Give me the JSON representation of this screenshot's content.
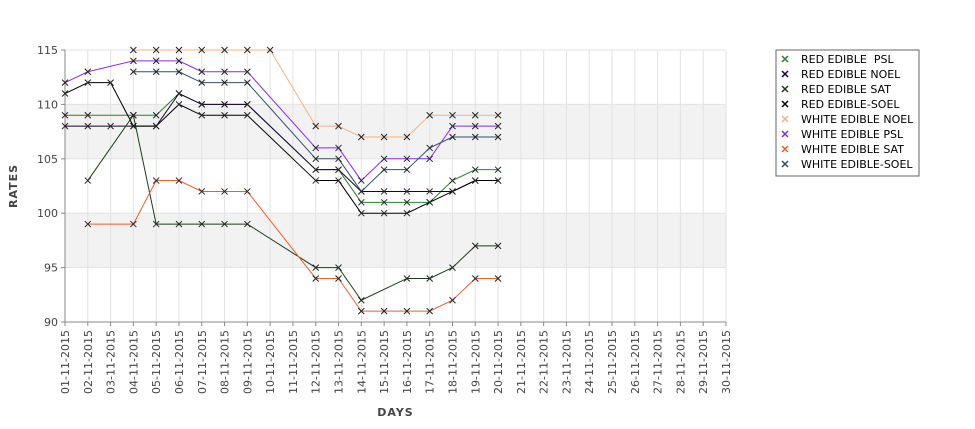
{
  "chart_data": {
    "type": "line",
    "xlabel": "DAYS",
    "ylabel": "RATES",
    "ylim": [
      90,
      115
    ],
    "yticks": [
      90,
      95,
      100,
      105,
      110,
      115
    ],
    "grid": true,
    "legend_position": "right",
    "categories": [
      "01-11-2015",
      "02-11-2015",
      "03-11-2015",
      "04-11-2015",
      "05-11-2015",
      "06-11-2015",
      "07-11-2015",
      "08-11-2015",
      "09-11-2015",
      "10-11-2015",
      "11-11-2015",
      "12-11-2015",
      "13-11-2015",
      "14-11-2015",
      "15-11-2015",
      "16-11-2015",
      "17-11-2015",
      "18-11-2015",
      "19-11-2015",
      "20-11-2015",
      "21-11-2015",
      "22-11-2015",
      "23-11-2015",
      "24-11-2015",
      "25-11-2015",
      "26-11-2015",
      "27-11-2015",
      "28-11-2015",
      "29-11-2015",
      "30-11-2015"
    ],
    "series": [
      {
        "name": "RED EDIBLE  PSL",
        "color": "#2e7d32",
        "values": [
          109,
          109,
          null,
          109,
          109,
          111,
          110,
          110,
          110,
          null,
          null,
          104,
          104,
          101,
          101,
          101,
          101,
          103,
          104,
          104,
          null,
          null,
          null,
          null,
          null,
          null,
          null,
          null,
          null,
          null
        ]
      },
      {
        "name": "RED EDIBLE NOEL",
        "color": "#1a0033",
        "values": [
          108,
          108,
          108,
          108,
          108,
          111,
          110,
          110,
          110,
          null,
          null,
          104,
          104,
          102,
          102,
          102,
          102,
          102,
          103,
          103,
          null,
          null,
          null,
          null,
          null,
          null,
          null,
          null,
          null,
          null
        ]
      },
      {
        "name": "RED EDIBLE SAT",
        "color": "#1b3d1b",
        "values": [
          null,
          103,
          null,
          109,
          99,
          99,
          99,
          99,
          99,
          null,
          null,
          95,
          95,
          92,
          null,
          94,
          94,
          95,
          97,
          97,
          null,
          null,
          null,
          null,
          null,
          null,
          null,
          null,
          null,
          null
        ]
      },
      {
        "name": "RED EDIBLE-SOEL",
        "color": "#000000",
        "values": [
          111,
          112,
          112,
          108,
          108,
          110,
          109,
          109,
          109,
          null,
          null,
          103,
          103,
          100,
          100,
          100,
          101,
          102,
          103,
          103,
          null,
          null,
          null,
          null,
          null,
          null,
          null,
          null,
          null,
          null
        ]
      },
      {
        "name": "WHITE EDIBLE NOEL",
        "color": "#f4b183",
        "values": [
          null,
          null,
          null,
          115,
          115,
          115,
          115,
          115,
          115,
          115,
          null,
          108,
          108,
          107,
          107,
          107,
          109,
          109,
          109,
          109,
          null,
          null,
          null,
          null,
          null,
          null,
          null,
          null,
          null,
          null
        ]
      },
      {
        "name": "WHITE EDIBLE PSL",
        "color": "#8a2be2",
        "values": [
          112,
          113,
          null,
          114,
          114,
          114,
          113,
          113,
          113,
          null,
          null,
          106,
          106,
          103,
          105,
          105,
          105,
          108,
          108,
          108,
          null,
          null,
          null,
          null,
          null,
          null,
          null,
          null,
          null,
          null
        ]
      },
      {
        "name": "WHITE EDIBLE SAT",
        "color": "#e8602c",
        "values": [
          null,
          99,
          null,
          99,
          103,
          103,
          102,
          102,
          102,
          null,
          null,
          94,
          94,
          91,
          91,
          91,
          91,
          92,
          94,
          94,
          null,
          null,
          null,
          null,
          null,
          null,
          null,
          null,
          null,
          null
        ]
      },
      {
        "name": "WHITE EDIBLE-SOEL",
        "color": "#2f4f6f",
        "values": [
          null,
          null,
          null,
          113,
          113,
          113,
          112,
          112,
          112,
          null,
          null,
          105,
          105,
          102,
          104,
          104,
          106,
          107,
          107,
          107,
          null,
          null,
          null,
          null,
          null,
          null,
          null,
          null,
          null,
          null
        ]
      }
    ]
  }
}
